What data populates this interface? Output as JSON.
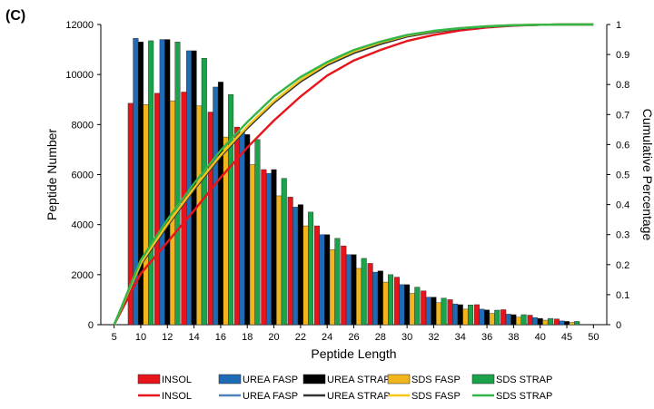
{
  "panel_label": "(C)",
  "chart_data": {
    "type": "bar",
    "xlabel": "Peptide Length",
    "ylabel": "Peptide Number",
    "y2label": "Cumulative  Percentage",
    "ylim": [
      0,
      12000
    ],
    "y2lim": [
      0,
      1
    ],
    "yticks": [
      0,
      2000,
      4000,
      6000,
      8000,
      10000,
      12000
    ],
    "y2ticks": [
      "0",
      "0.1",
      "0.2",
      "0.3",
      "0.4",
      "0.5",
      "0.6",
      "0.7",
      "0.8",
      "0.9",
      "1"
    ],
    "x_ticks": [
      "5",
      "10",
      "12",
      "14",
      "16",
      "18",
      "20",
      "22",
      "24",
      "26",
      "28",
      "30",
      "32",
      "34",
      "36",
      "38",
      "40",
      "45",
      "50"
    ],
    "bar_categories": [
      "10",
      "12",
      "14",
      "16",
      "18",
      "20",
      "22",
      "24",
      "26",
      "28",
      "30",
      "32",
      "34",
      "36",
      "38",
      "40",
      "45"
    ],
    "bar_series": [
      {
        "name": "INSOL",
        "color": "#e8141b",
        "values": [
          8850,
          9250,
          9300,
          8500,
          7900,
          6200,
          5100,
          3950,
          3150,
          2450,
          1900,
          1350,
          1000,
          800,
          600,
          380,
          230
        ]
      },
      {
        "name": "UREA FASP",
        "color": "#1f6bb5",
        "values": [
          11450,
          11400,
          10950,
          9500,
          7700,
          6050,
          4700,
          3600,
          2800,
          2100,
          1600,
          1100,
          830,
          620,
          420,
          280,
          150
        ]
      },
      {
        "name": "UREA STRAP",
        "color": "#000000",
        "values": [
          11300,
          11400,
          10950,
          9700,
          7600,
          6200,
          4800,
          3600,
          2800,
          2150,
          1600,
          1100,
          800,
          590,
          400,
          250,
          130
        ]
      },
      {
        "name": "SDS FASP",
        "color": "#f2b51d",
        "values": [
          8800,
          8950,
          8750,
          7500,
          6400,
          5150,
          3950,
          3000,
          2250,
          1700,
          1250,
          880,
          620,
          450,
          300,
          180,
          90
        ]
      },
      {
        "name": "SDS STRAP",
        "color": "#1aa34a",
        "values": [
          11350,
          11300,
          10650,
          9200,
          7400,
          5850,
          4500,
          3450,
          2650,
          2000,
          1500,
          1060,
          790,
          580,
          400,
          250,
          130
        ]
      }
    ],
    "cumulative_series": [
      {
        "name": "INSOL",
        "color": "#e8141b",
        "x": [
          "5",
          "10",
          "12",
          "14",
          "16",
          "18",
          "20",
          "22",
          "24",
          "26",
          "28",
          "30",
          "32",
          "34",
          "36",
          "38",
          "40",
          "45",
          "50"
        ],
        "values": [
          0,
          0.17,
          0.275,
          0.38,
          0.49,
          0.59,
          0.68,
          0.76,
          0.83,
          0.88,
          0.915,
          0.945,
          0.965,
          0.98,
          0.99,
          0.996,
          0.999,
          1,
          1
        ]
      },
      {
        "name": "UREA FASP",
        "color": "#4f81bd",
        "values": [
          0,
          0.2,
          0.33,
          0.45,
          0.56,
          0.655,
          0.74,
          0.81,
          0.865,
          0.905,
          0.935,
          0.96,
          0.975,
          0.986,
          0.993,
          0.997,
          0.999,
          1,
          1
        ]
      },
      {
        "name": "UREA STRAP",
        "color": "#333333",
        "values": [
          0,
          0.2,
          0.33,
          0.45,
          0.56,
          0.655,
          0.74,
          0.81,
          0.865,
          0.905,
          0.935,
          0.96,
          0.975,
          0.986,
          0.993,
          0.997,
          0.999,
          1,
          1
        ]
      },
      {
        "name": "SDS FASP",
        "color": "#f5c518",
        "values": [
          0,
          0.205,
          0.335,
          0.455,
          0.565,
          0.66,
          0.745,
          0.815,
          0.87,
          0.91,
          0.94,
          0.963,
          0.978,
          0.988,
          0.994,
          0.998,
          0.999,
          1,
          1
        ]
      },
      {
        "name": "SDS STRAP",
        "color": "#33b54a",
        "values": [
          0,
          0.215,
          0.35,
          0.47,
          0.58,
          0.675,
          0.76,
          0.825,
          0.875,
          0.915,
          0.943,
          0.965,
          0.979,
          0.988,
          0.994,
          0.998,
          0.999,
          1,
          1
        ]
      }
    ],
    "legend_bars": [
      "INSOL",
      "UREA FASP",
      "UREA STRAP",
      "SDS FASP",
      "SDS STRAP"
    ],
    "legend_lines": [
      "INSOL",
      "UREA FASP",
      "UREA STRAP",
      "SDS FASP",
      "SDS STRAP"
    ],
    "legend_position": "bottom",
    "grid": false
  }
}
